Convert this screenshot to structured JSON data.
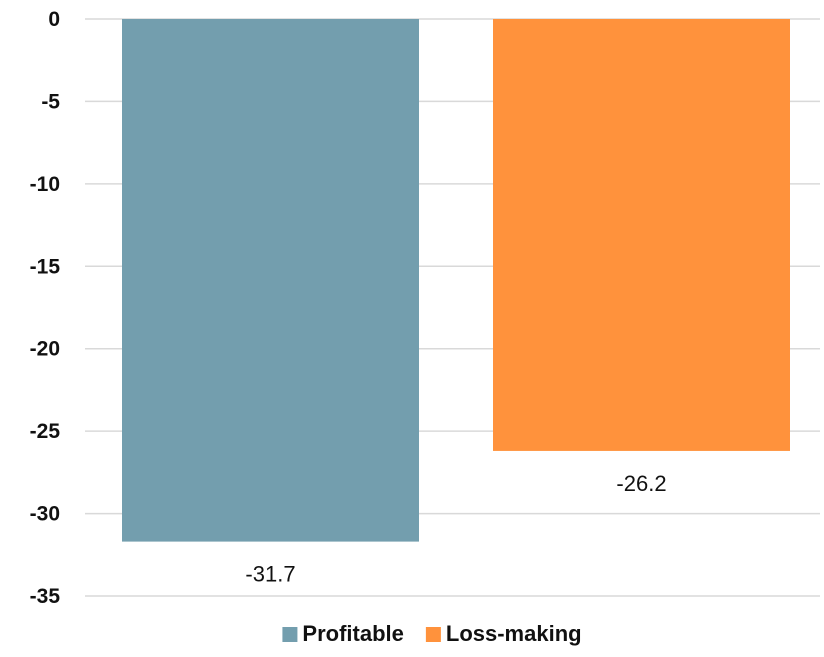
{
  "chart_data": {
    "type": "bar",
    "categories": [
      "Profitable",
      "Loss-making"
    ],
    "values": [
      -31.7,
      -26.2
    ],
    "data_labels": [
      "-31.7",
      "-26.2"
    ],
    "colors": [
      "#739eae",
      "#ff923c"
    ],
    "ylim": [
      -35,
      0
    ],
    "yticks": [
      0,
      -5,
      -10,
      -15,
      -20,
      -25,
      -30,
      -35
    ],
    "ytick_labels": [
      "0",
      "-5",
      "-10",
      "-15",
      "-20",
      "-25",
      "-30",
      "-35"
    ],
    "grid": true,
    "legend": {
      "placement": "bottom",
      "entries": [
        "Profitable",
        "Loss-making"
      ]
    }
  }
}
